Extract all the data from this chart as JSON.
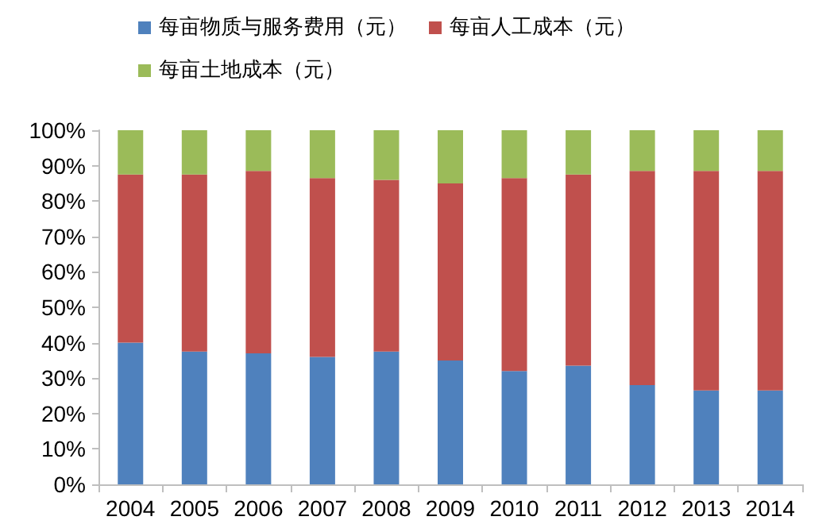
{
  "chart_data": {
    "type": "bar",
    "stacked": true,
    "categories": [
      "2004",
      "2005",
      "2006",
      "2007",
      "2008",
      "2009",
      "2010",
      "2011",
      "2012",
      "2013",
      "2014"
    ],
    "series": [
      {
        "name": "每亩物质与服务费用（元）",
        "color": "#4f81bd",
        "values": [
          40,
          37.5,
          37,
          36,
          37.5,
          35,
          32,
          33.5,
          28,
          26.5,
          26.5
        ]
      },
      {
        "name": "每亩人工成本（元）",
        "color": "#c0504d",
        "values": [
          47.5,
          50,
          51.5,
          50.5,
          48.5,
          50,
          54.5,
          54,
          60.5,
          62,
          62
        ]
      },
      {
        "name": "每亩土地成本（元）",
        "color": "#9bbb59",
        "values": [
          12.5,
          12.5,
          11.5,
          13.5,
          14,
          15,
          13.5,
          12.5,
          11.5,
          11.5,
          11.5
        ]
      }
    ],
    "ylim": [
      0,
      100
    ],
    "yticks": [
      {
        "value": 0,
        "label": "0%"
      },
      {
        "value": 10,
        "label": "10%"
      },
      {
        "value": 20,
        "label": "20%"
      },
      {
        "value": 30,
        "label": "30%"
      },
      {
        "value": 40,
        "label": "40%"
      },
      {
        "value": 50,
        "label": "50%"
      },
      {
        "value": 60,
        "label": "60%"
      },
      {
        "value": 70,
        "label": "70%"
      },
      {
        "value": 80,
        "label": "80%"
      },
      {
        "value": 90,
        "label": "90%"
      },
      {
        "value": 100,
        "label": "100%"
      }
    ],
    "grid": false,
    "legend": "top"
  }
}
